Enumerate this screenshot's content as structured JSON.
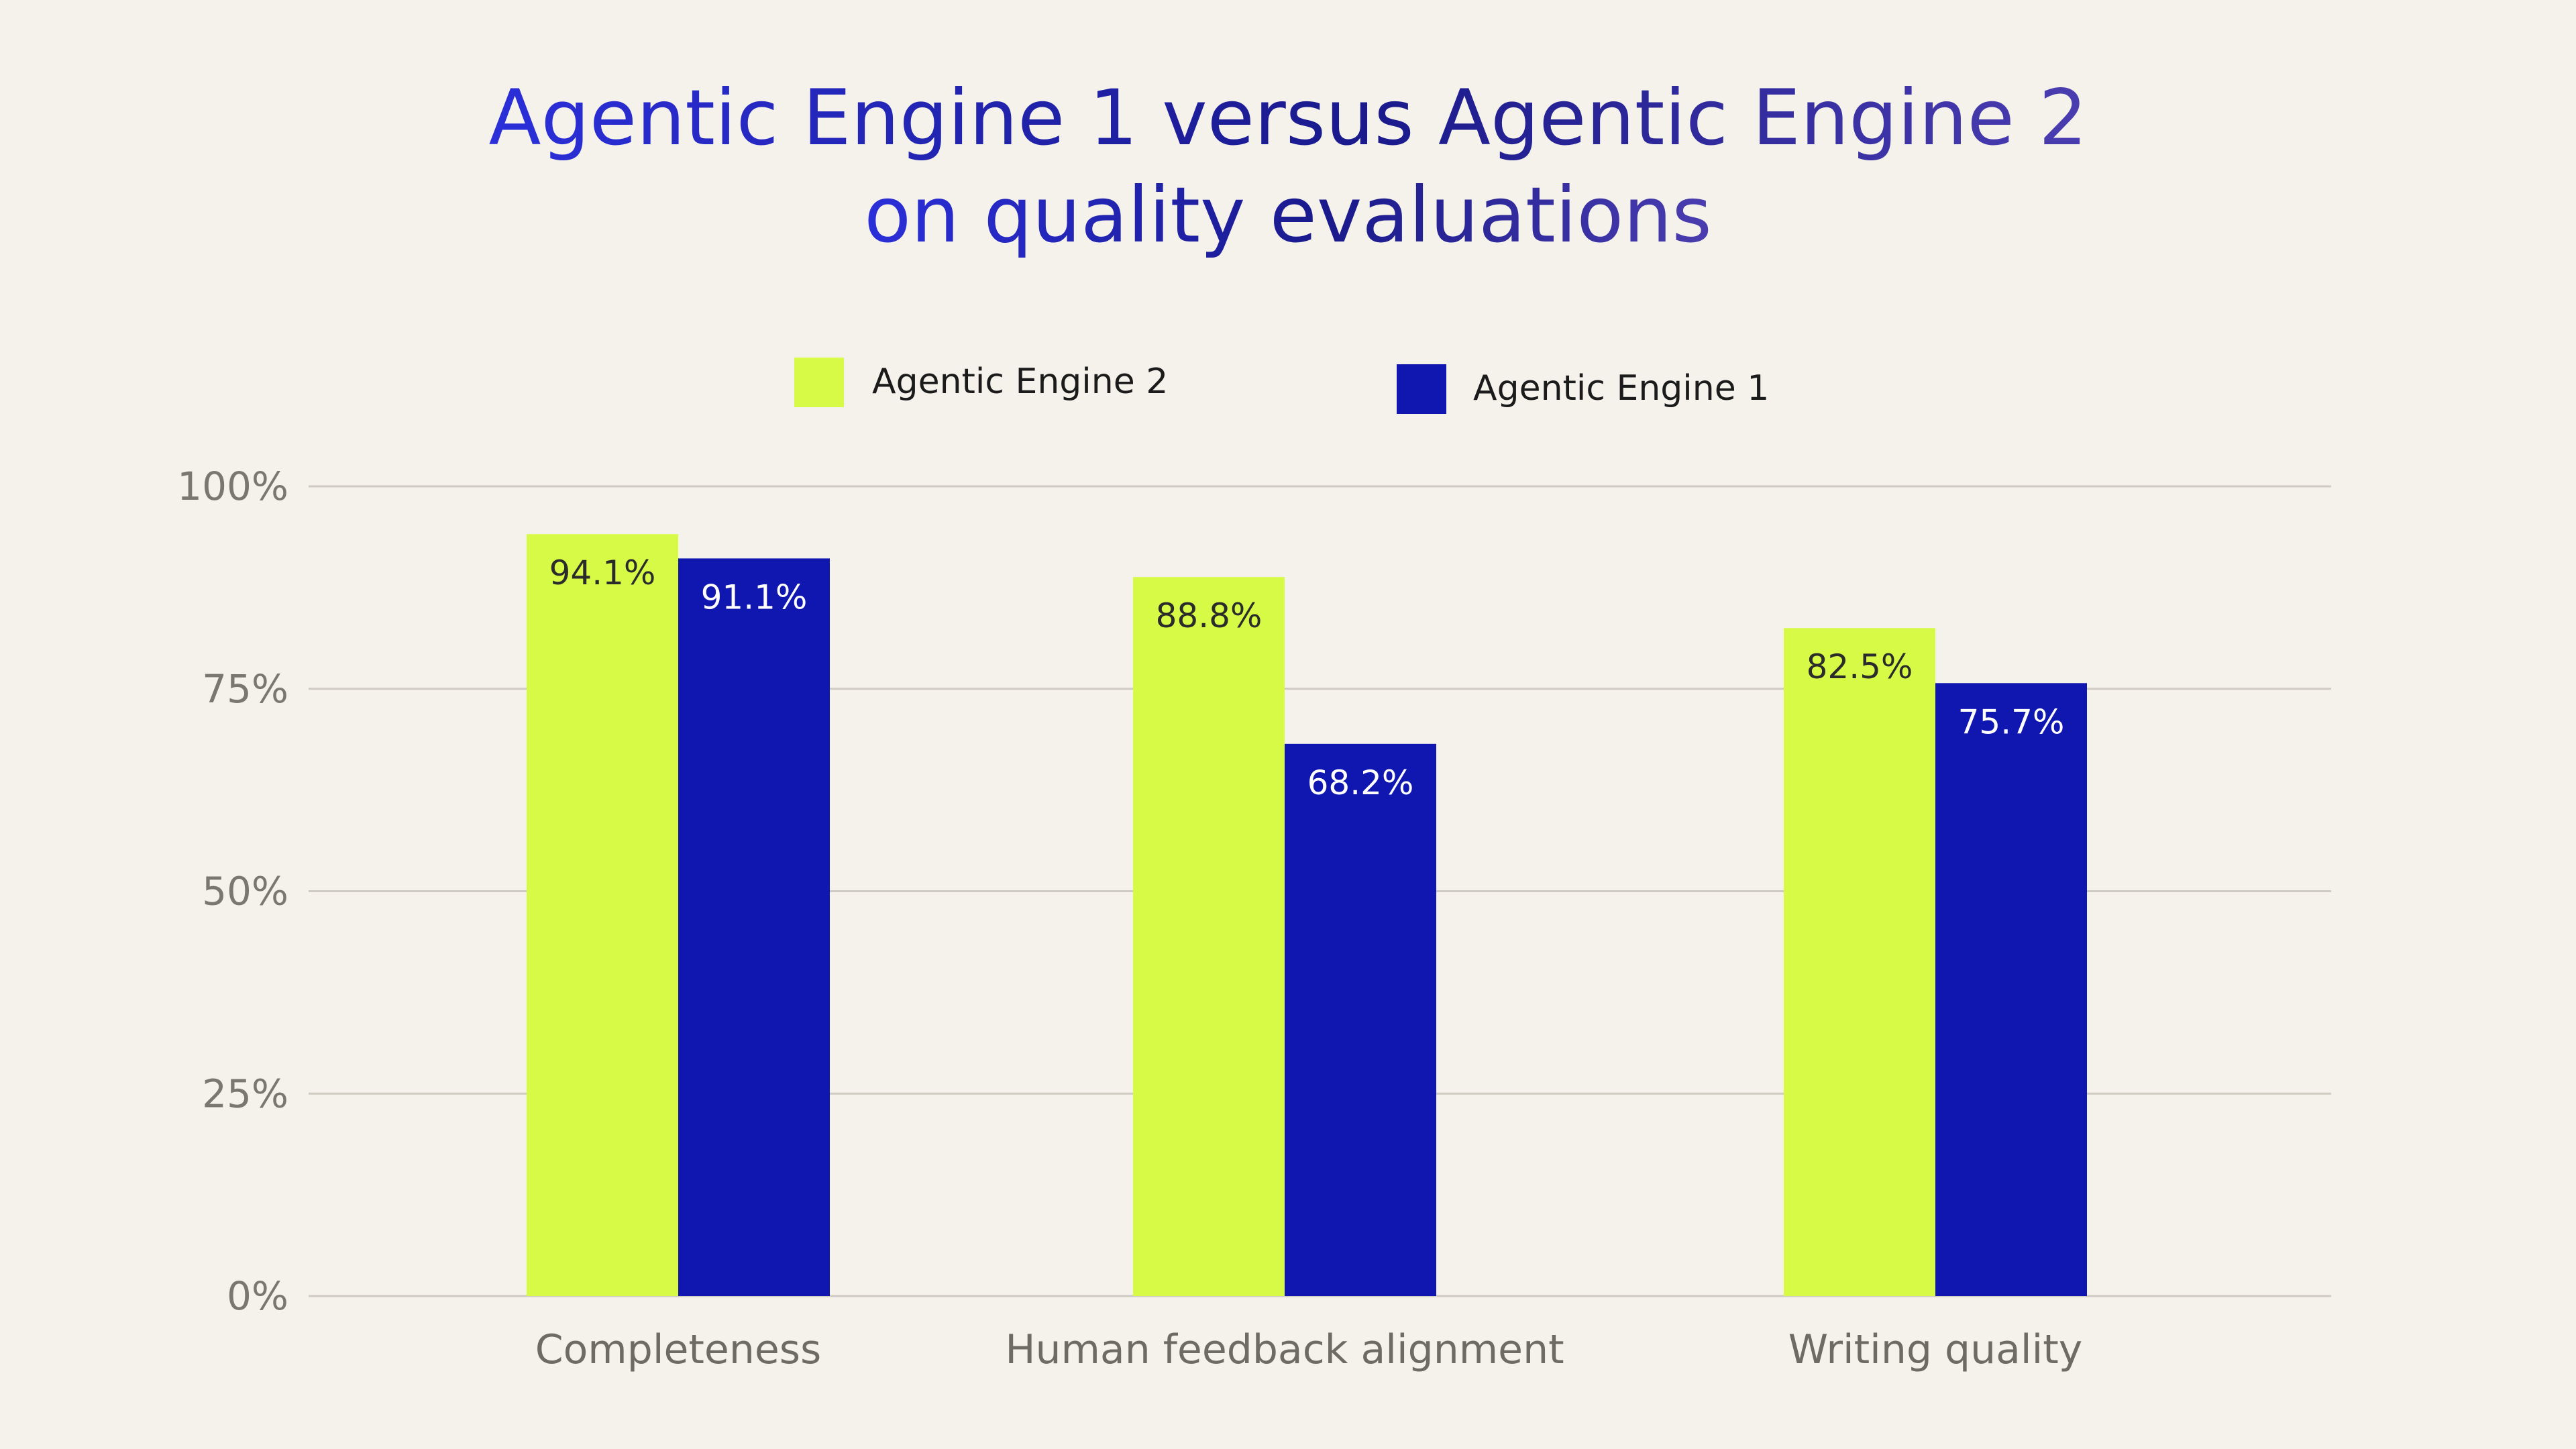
{
  "chart_data": {
    "type": "bar",
    "title_lines": [
      "Agentic Engine 1 versus Agentic Engine 2",
      "on quality evaluations"
    ],
    "categories": [
      "Completeness",
      "Human feedback alignment",
      "Writing quality"
    ],
    "series": [
      {
        "name": "Agentic Engine 2",
        "color": "#D7FA47",
        "label_color": "#2b2b2b",
        "values": [
          94.1,
          88.8,
          82.5
        ],
        "labels": [
          "94.1%",
          "88.8%",
          "82.5%"
        ]
      },
      {
        "name": "Agentic Engine 1",
        "color": "#1016B0",
        "label_color": "#FFFFFF",
        "values": [
          91.1,
          68.2,
          75.7
        ],
        "labels": [
          "91.1%",
          "68.2%",
          "75.7%"
        ]
      }
    ],
    "legend": [
      "Agentic Engine 2",
      "Agentic Engine 1"
    ],
    "yticks": [
      0,
      25,
      50,
      75,
      100
    ],
    "ytick_labels": [
      "0%",
      "25%",
      "50%",
      "75%",
      "100%"
    ],
    "ylim": [
      0,
      100
    ],
    "grid": true,
    "legend_position": "top-center",
    "title_gradient": [
      "#2B2FD9",
      "#1A1A8C",
      "#4A3DB0"
    ]
  }
}
